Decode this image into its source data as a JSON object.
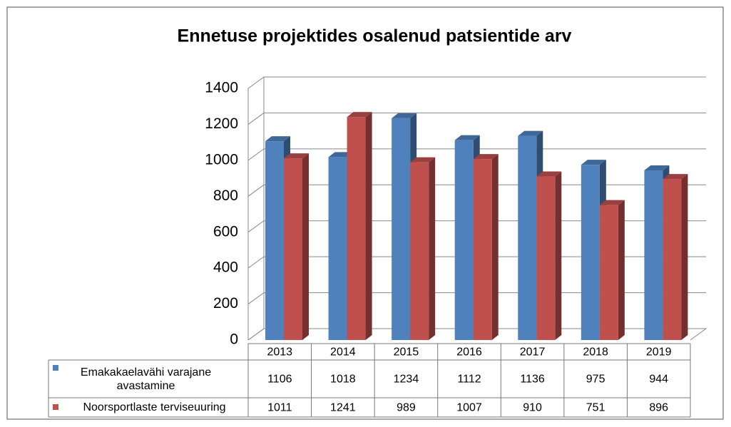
{
  "chart_data": {
    "type": "bar3d",
    "title": "Ennetuse projektides osalenud patsientide arv",
    "categories": [
      "2013",
      "2014",
      "2015",
      "2016",
      "2017",
      "2018",
      "2019"
    ],
    "series": [
      {
        "name": "Emakakaelavähi varajane avastamine",
        "color": "#4f81bd",
        "values": [
          1106,
          1018,
          1234,
          1112,
          1136,
          975,
          944
        ]
      },
      {
        "name": "Noorsportlaste terviseuuring",
        "color": "#c0504d",
        "values": [
          1011,
          1241,
          989,
          1007,
          910,
          751,
          896
        ]
      }
    ],
    "ylim": [
      0,
      1400
    ],
    "yticks": [
      0,
      200,
      400,
      600,
      800,
      1000,
      1200,
      1400
    ],
    "grid": true
  }
}
